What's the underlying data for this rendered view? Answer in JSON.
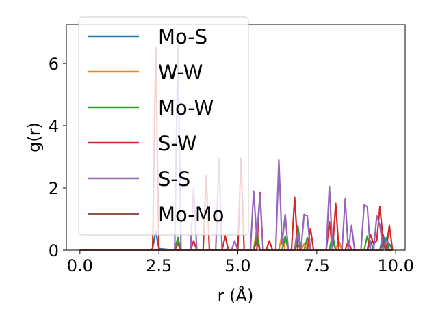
{
  "chart_data": {
    "type": "line",
    "xlabel": "r (Å)",
    "ylabel": "g(r)",
    "xlim": [
      -0.43,
      10.3
    ],
    "ylim": [
      0,
      7.25
    ],
    "xticks": [
      0.0,
      2.5,
      5.0,
      7.5,
      10.0
    ],
    "xtick_labels": [
      "0.0",
      "2.5",
      "5.0",
      "7.5",
      "10.0"
    ],
    "yticks": [
      0,
      2,
      4,
      6
    ],
    "ytick_labels": [
      "0",
      "2",
      "4",
      "6"
    ],
    "grid": false,
    "legend_position": "upper-left",
    "series": [
      {
        "name": "Mo-S",
        "color": "#1f77b4",
        "points": [
          [
            0,
            0
          ],
          [
            2.2,
            0
          ],
          [
            2.3,
            0.05
          ],
          [
            2.4,
            0.6
          ],
          [
            2.5,
            0.05
          ],
          [
            3.0,
            0
          ],
          [
            3.1,
            0.4
          ],
          [
            3.2,
            0
          ],
          [
            5.5,
            0
          ],
          [
            5.6,
            0.3
          ],
          [
            5.7,
            0
          ],
          [
            6.4,
            0
          ],
          [
            6.5,
            0.4
          ],
          [
            6.6,
            0
          ],
          [
            6.8,
            0
          ],
          [
            6.9,
            0.5
          ],
          [
            7.0,
            0
          ],
          [
            7.9,
            0
          ],
          [
            8.0,
            0.4
          ],
          [
            8.1,
            0
          ],
          [
            8.2,
            0.3
          ],
          [
            8.3,
            0
          ],
          [
            9.1,
            0
          ],
          [
            9.2,
            0.3
          ],
          [
            9.3,
            0
          ],
          [
            9.5,
            0
          ],
          [
            9.6,
            0.5
          ],
          [
            9.7,
            0
          ],
          [
            9.8,
            0.2
          ],
          [
            9.9,
            0
          ]
        ]
      },
      {
        "name": "W-W",
        "color": "#ff7f0e",
        "points": [
          [
            0,
            0
          ],
          [
            3.0,
            0
          ],
          [
            3.1,
            0.3
          ],
          [
            3.2,
            0
          ],
          [
            5.5,
            0
          ],
          [
            5.6,
            0.7
          ],
          [
            5.7,
            0
          ],
          [
            6.3,
            0
          ],
          [
            6.4,
            0.5
          ],
          [
            6.5,
            0
          ],
          [
            7.0,
            0
          ],
          [
            7.1,
            0.2
          ],
          [
            7.2,
            0
          ],
          [
            8.1,
            0
          ],
          [
            8.2,
            0.3
          ],
          [
            8.3,
            0
          ],
          [
            9.5,
            0
          ],
          [
            9.6,
            0.2
          ],
          [
            9.7,
            0
          ],
          [
            9.9,
            0
          ]
        ]
      },
      {
        "name": "Mo-W",
        "color": "#2ca02c",
        "points": [
          [
            0,
            0
          ],
          [
            3.0,
            0
          ],
          [
            3.1,
            0.4
          ],
          [
            3.2,
            0
          ],
          [
            5.5,
            0
          ],
          [
            5.6,
            0.5
          ],
          [
            5.7,
            0
          ],
          [
            6.4,
            0
          ],
          [
            6.5,
            0.45
          ],
          [
            6.6,
            0
          ],
          [
            6.8,
            0
          ],
          [
            6.9,
            0.8
          ],
          [
            7.0,
            0
          ],
          [
            7.1,
            0
          ],
          [
            7.2,
            0.4
          ],
          [
            7.3,
            0
          ],
          [
            7.9,
            0
          ],
          [
            8.0,
            0.5
          ],
          [
            8.1,
            0
          ],
          [
            9.0,
            0
          ],
          [
            9.1,
            0.45
          ],
          [
            9.2,
            0
          ],
          [
            9.6,
            0
          ],
          [
            9.7,
            0.4
          ],
          [
            9.8,
            0
          ],
          [
            9.9,
            0
          ]
        ]
      },
      {
        "name": "S-W",
        "color": "#d62728",
        "points": [
          [
            0,
            0
          ],
          [
            2.3,
            0
          ],
          [
            2.4,
            6.5
          ],
          [
            2.5,
            0
          ],
          [
            3.5,
            0
          ],
          [
            3.6,
            0.3
          ],
          [
            3.7,
            0
          ],
          [
            3.9,
            0
          ],
          [
            4.0,
            2.4
          ],
          [
            4.1,
            0
          ],
          [
            4.5,
            0
          ],
          [
            4.6,
            0.45
          ],
          [
            4.7,
            0
          ],
          [
            5.0,
            0
          ],
          [
            5.1,
            2.95
          ],
          [
            5.2,
            0
          ],
          [
            5.6,
            0
          ],
          [
            5.7,
            1.85
          ],
          [
            5.8,
            0
          ],
          [
            5.9,
            0
          ],
          [
            6.0,
            0.3
          ],
          [
            6.1,
            0
          ],
          [
            6.7,
            0
          ],
          [
            6.8,
            1.7
          ],
          [
            6.9,
            0
          ],
          [
            7.2,
            0
          ],
          [
            7.3,
            0.7
          ],
          [
            7.4,
            0
          ],
          [
            7.8,
            0
          ],
          [
            7.9,
            0.9
          ],
          [
            8.0,
            0
          ],
          [
            8.1,
            1.5
          ],
          [
            8.2,
            0
          ],
          [
            8.4,
            0
          ],
          [
            8.5,
            0.3
          ],
          [
            8.6,
            0
          ],
          [
            9.1,
            0
          ],
          [
            9.2,
            0.5
          ],
          [
            9.3,
            0.2
          ],
          [
            9.4,
            0.3
          ],
          [
            9.5,
            1.4
          ],
          [
            9.6,
            0.3
          ],
          [
            9.7,
            0
          ],
          [
            9.8,
            0.8
          ],
          [
            9.9,
            0
          ]
        ]
      },
      {
        "name": "S-S",
        "color": "#9467bd",
        "points": [
          [
            0,
            0
          ],
          [
            3.0,
            0
          ],
          [
            3.1,
            6.6
          ],
          [
            3.2,
            0
          ],
          [
            3.5,
            0
          ],
          [
            3.6,
            2.0
          ],
          [
            3.7,
            0
          ],
          [
            4.3,
            0
          ],
          [
            4.4,
            2.95
          ],
          [
            4.5,
            0
          ],
          [
            4.8,
            0
          ],
          [
            4.9,
            0.3
          ],
          [
            5.0,
            0
          ],
          [
            5.4,
            0
          ],
          [
            5.5,
            1.9
          ],
          [
            5.6,
            0.4
          ],
          [
            5.7,
            1.8
          ],
          [
            5.8,
            0
          ],
          [
            6.2,
            0
          ],
          [
            6.3,
            2.9
          ],
          [
            6.4,
            0.2
          ],
          [
            6.5,
            1.15
          ],
          [
            6.6,
            0
          ],
          [
            6.8,
            0
          ],
          [
            6.9,
            0.55
          ],
          [
            7.0,
            0
          ],
          [
            7.1,
            1.15
          ],
          [
            7.2,
            1.1
          ],
          [
            7.3,
            0
          ],
          [
            7.8,
            0
          ],
          [
            7.9,
            2.05
          ],
          [
            8.0,
            0
          ],
          [
            8.3,
            0
          ],
          [
            8.4,
            1.65
          ],
          [
            8.5,
            0
          ],
          [
            8.6,
            0.8
          ],
          [
            8.7,
            0
          ],
          [
            8.9,
            0
          ],
          [
            9.0,
            1.45
          ],
          [
            9.1,
            1.4
          ],
          [
            9.2,
            0
          ],
          [
            9.3,
            0
          ],
          [
            9.4,
            1.1
          ],
          [
            9.5,
            0.8
          ],
          [
            9.6,
            0
          ],
          [
            9.7,
            0.3
          ],
          [
            9.8,
            0.2
          ]
        ]
      },
      {
        "name": "Mo-Mo",
        "color": "#8c564b",
        "points": [
          [
            0,
            0
          ],
          [
            3.0,
            0
          ],
          [
            3.1,
            0.2
          ],
          [
            3.2,
            0
          ],
          [
            5.5,
            0
          ],
          [
            5.6,
            0.3
          ],
          [
            5.7,
            0
          ],
          [
            6.8,
            0
          ],
          [
            6.9,
            0.2
          ],
          [
            7.0,
            0
          ],
          [
            9.5,
            0
          ],
          [
            9.6,
            0.2
          ],
          [
            9.7,
            0
          ],
          [
            9.9,
            0
          ]
        ]
      }
    ]
  }
}
